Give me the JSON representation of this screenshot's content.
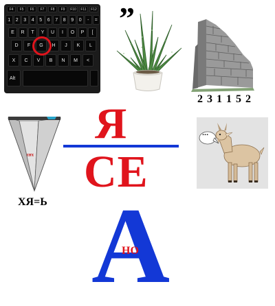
{
  "keyboard": {
    "fn_row": [
      "F4",
      "F5",
      "F6",
      "F7",
      "F8",
      "F9",
      "F10",
      "F11",
      "F12"
    ],
    "row_num": [
      "1",
      "2",
      "3",
      "4",
      "5",
      "6",
      "7",
      "8",
      "9",
      "0",
      "-",
      "="
    ],
    "row_q": [
      "E",
      "R",
      "T",
      "Y",
      "U",
      "I",
      "O",
      "P",
      "["
    ],
    "row_a": [
      "D",
      "F",
      "G",
      "H",
      "J",
      "K",
      "L"
    ],
    "row_z": [
      "X",
      "C",
      "V",
      "B",
      "N",
      "M",
      "<"
    ],
    "alt_label": "Alt",
    "highlighted_key": "G",
    "highlight_color": "#e0141c"
  },
  "quote_mark": "”",
  "wall_digits": "2 3 1 1 5 2",
  "pyramid_note": "хяз",
  "equation": "ХЯ=Ь",
  "fraction": {
    "numerator": "Я",
    "denominator": "СЕ",
    "line_color": "#1338d6",
    "letter_color": "#e0141c"
  },
  "big_letter": {
    "letter": "А",
    "inner_text": "НО",
    "letter_color": "#1338d6",
    "inner_color": "#e0141c"
  },
  "goat_speech": "..."
}
